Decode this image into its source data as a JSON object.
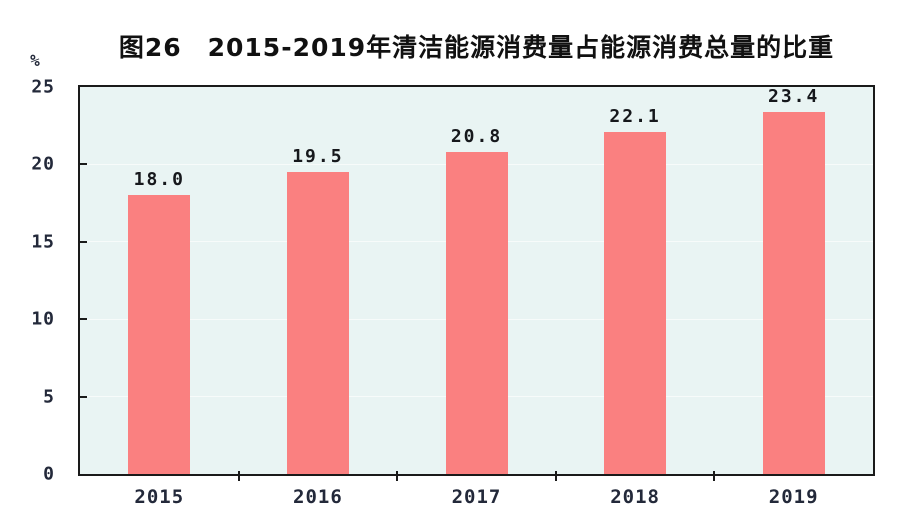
{
  "chart_data": {
    "type": "bar",
    "title": "图26　2015-2019年清洁能源消费量占能源消费总量的比重",
    "unit_label": "%",
    "categories": [
      "2015",
      "2016",
      "2017",
      "2018",
      "2019"
    ],
    "values": [
      18.0,
      19.5,
      20.8,
      22.1,
      23.4
    ],
    "value_labels": [
      "18.0",
      "19.5",
      "20.8",
      "22.1",
      "23.4"
    ],
    "ylabel": "%",
    "ylim": [
      0,
      25
    ],
    "yticks": [
      0,
      5,
      10,
      15,
      20,
      25
    ],
    "grid": true,
    "legend": "none",
    "colors": {
      "bar": "#fa8080",
      "plot_background": "#e9f4f3",
      "gridline": "#f7fbfa",
      "axis": "#1a1a1a",
      "text": "#23293a"
    }
  }
}
